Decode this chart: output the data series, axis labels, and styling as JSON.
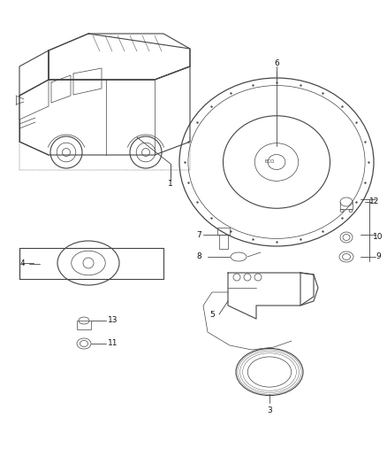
{
  "bg_color": "#ffffff",
  "fig_width": 4.38,
  "fig_height": 5.33,
  "dpi": 100,
  "line_color": "#444444",
  "text_color": "#111111",
  "label_fontsize": 6.5
}
